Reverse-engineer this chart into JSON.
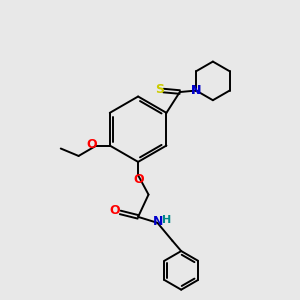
{
  "bg_color": "#e8e8e8",
  "bond_color": "#000000",
  "atom_colors": {
    "S": "#cccc00",
    "N": "#0000cc",
    "O": "#ff0000",
    "NH_N": "#0000cc",
    "NH_H": "#008888"
  },
  "lw": 1.4,
  "fig_size": 3.0,
  "dpi": 100
}
